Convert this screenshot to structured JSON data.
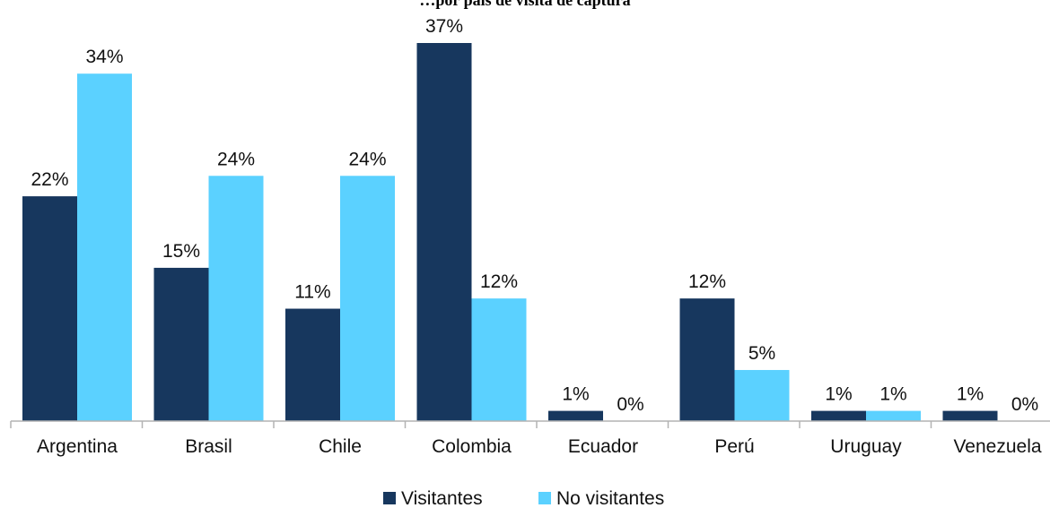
{
  "chart_data": {
    "type": "bar",
    "title": "…por país de visita de captura",
    "categories": [
      "Argentina",
      "Brasil",
      "Chile",
      "Colombia",
      "Ecuador",
      "Perú",
      "Uruguay",
      "Venezuela"
    ],
    "series": [
      {
        "name": "Visitantes",
        "color": "#17375e",
        "values": [
          22,
          15,
          11,
          37,
          1,
          12,
          1,
          1
        ],
        "labels": [
          "22%",
          "15%",
          "11%",
          "37%",
          "1%",
          "12%",
          "1%",
          "1%"
        ]
      },
      {
        "name": "No visitantes",
        "color": "#5bd1ff",
        "values": [
          34,
          24,
          24,
          12,
          0,
          5,
          1,
          0
        ],
        "labels": [
          "34%",
          "24%",
          "24%",
          "12%",
          "0%",
          "5%",
          "1%",
          "0%"
        ]
      }
    ],
    "ylim": [
      0,
      37
    ],
    "grid": false,
    "legend_position": "bottom",
    "xlabel": "",
    "ylabel": ""
  }
}
